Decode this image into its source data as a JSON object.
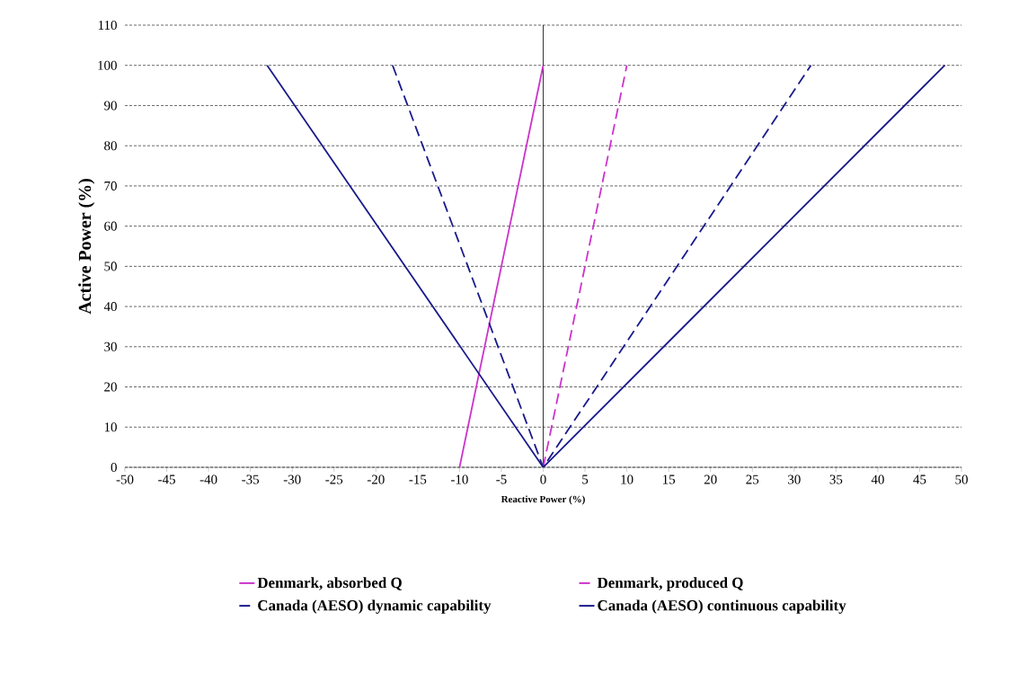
{
  "chart_data": {
    "type": "line",
    "xlabel": "Reactive Power (%)",
    "ylabel": "Active Power (%)",
    "xlim": [
      -50,
      50
    ],
    "ylim": [
      0,
      110
    ],
    "xticks": [
      -50,
      -45,
      -40,
      -35,
      -30,
      -25,
      -20,
      -15,
      -10,
      -5,
      0,
      5,
      10,
      15,
      20,
      25,
      30,
      35,
      40,
      45,
      50
    ],
    "yticks": [
      0,
      10,
      20,
      30,
      40,
      50,
      60,
      70,
      80,
      90,
      100,
      110
    ],
    "grid": "y",
    "legend": "bottom",
    "marker": "none",
    "series": [
      {
        "name": "Denmark, absorbed Q",
        "color": "#cc33cc",
        "line_style": "solid",
        "x": [
          -10,
          0
        ],
        "values": [
          0,
          100
        ]
      },
      {
        "name": "Denmark, produced Q",
        "color": "#cc33cc",
        "line_style": "dashed",
        "x": [
          0,
          10
        ],
        "values": [
          0,
          100
        ]
      },
      {
        "name": "Canada (AESO) dynamic capability",
        "color": "#1a1a8c",
        "line_style": "dashed",
        "x": [
          -18,
          0,
          32
        ],
        "values": [
          100,
          0,
          100
        ]
      },
      {
        "name": "Canada (AESO) continuous capability",
        "color": "#1a1a8c",
        "line_style": "solid",
        "x": [
          -33,
          0,
          48
        ],
        "values": [
          100,
          0,
          100
        ]
      }
    ]
  }
}
